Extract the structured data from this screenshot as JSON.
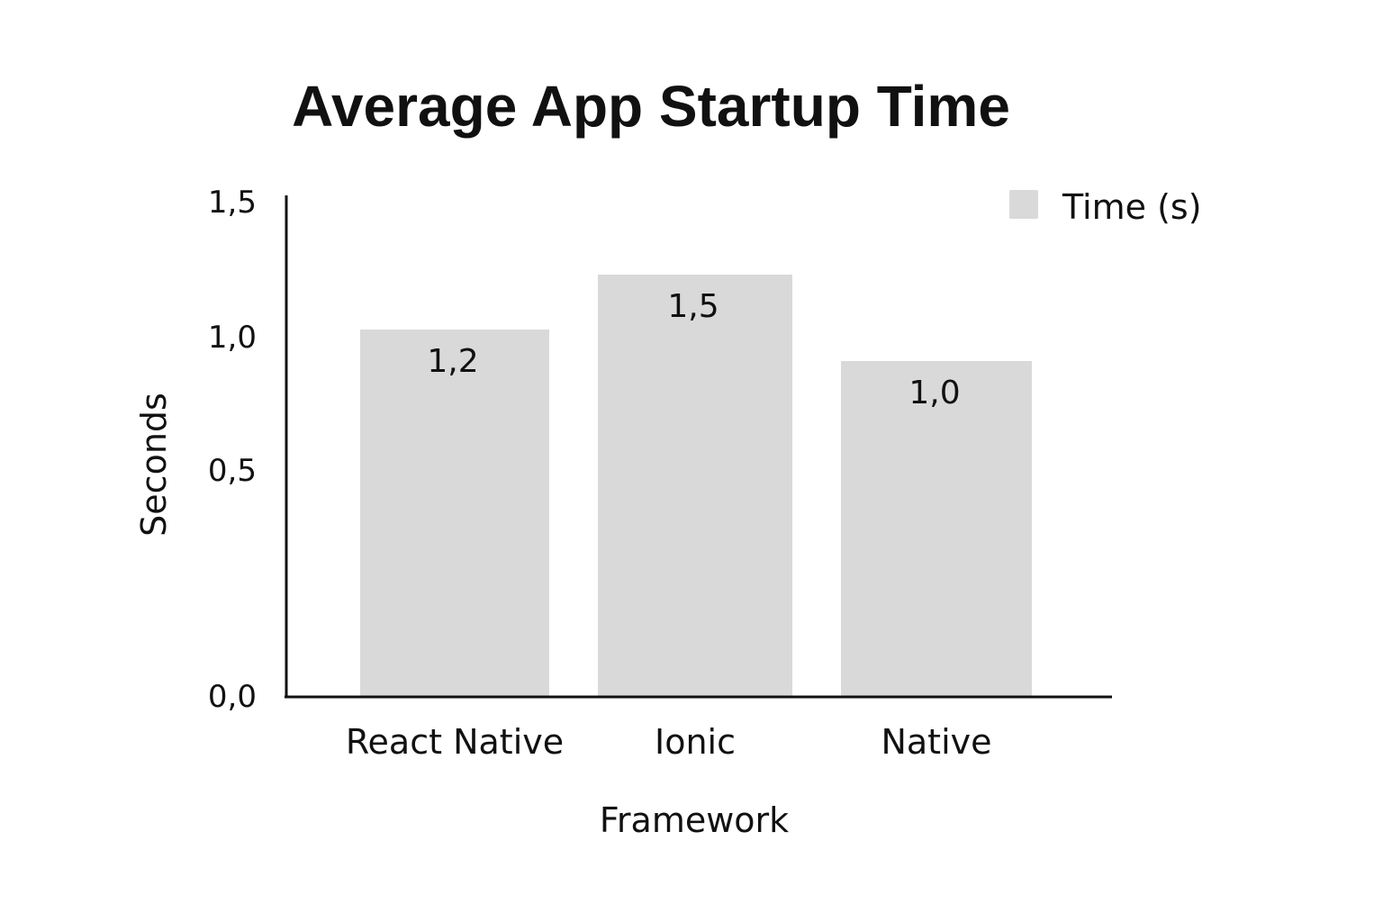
{
  "chart_data": {
    "type": "bar",
    "title": "Average App Startup Time",
    "xlabel": "Framework",
    "ylabel": "Seconds",
    "categories": [
      "React Native",
      "Ionic",
      "Native"
    ],
    "series": [
      {
        "name": "Time (s)",
        "values": [
          1.2,
          1.5,
          1.0
        ],
        "value_labels": [
          "1,2",
          "1,5",
          "1,0"
        ],
        "color": "#d9d9d9"
      }
    ],
    "y_ticks": [
      "0,0",
      "0,5",
      "1,0",
      "1,5"
    ],
    "ylim": [
      0,
      1.5
    ],
    "grid": false,
    "legend_position": "top-right"
  }
}
